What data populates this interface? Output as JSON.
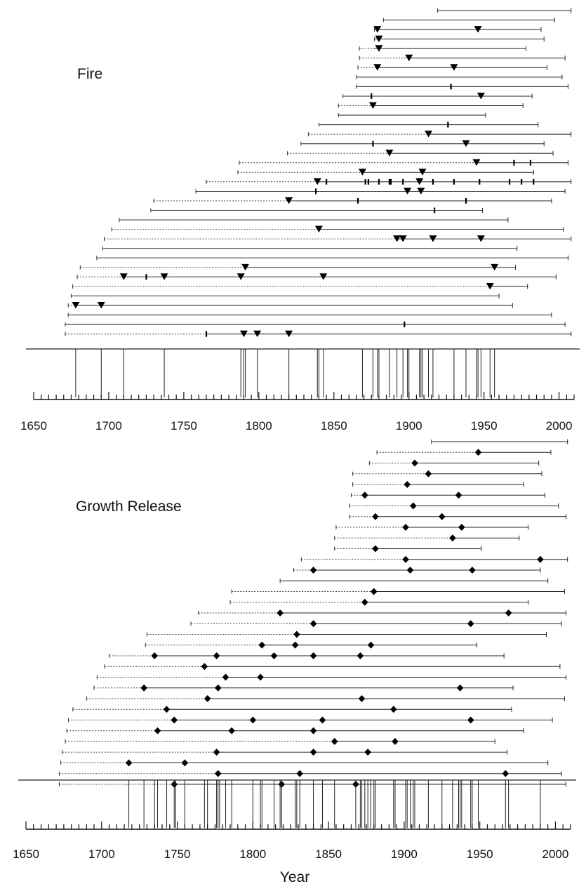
{
  "chart_data": [
    {
      "type": "event-timeline",
      "title": "Fire",
      "xlabel": "",
      "xlim": [
        1650,
        2010
      ],
      "xticks": [
        "1650",
        "1700",
        "1750",
        "1800",
        "1850",
        "1900",
        "1950",
        "2000"
      ],
      "samples": [
        {
          "pith": 1919,
          "inner": 1919,
          "outer": 2008,
          "events": [],
          "minor": []
        },
        {
          "pith": 1883,
          "inner": 1883,
          "outer": 1997,
          "events": [],
          "minor": []
        },
        {
          "pith": 1877,
          "inner": 1877,
          "outer": 1988,
          "events": [
            1879,
            1946
          ],
          "minor": []
        },
        {
          "pith": 1877,
          "inner": 1877,
          "outer": 1990,
          "events": [
            1880
          ],
          "minor": []
        },
        {
          "pith": 1867,
          "inner": 1877,
          "outer": 1978,
          "events": [
            1880
          ],
          "minor": []
        },
        {
          "pith": 1867,
          "inner": 1900,
          "outer": 2004,
          "events": [
            1900
          ],
          "minor": []
        },
        {
          "pith": 1866,
          "inner": 1879,
          "outer": 1992,
          "events": [
            1879,
            1930
          ],
          "minor": []
        },
        {
          "pith": 1865,
          "inner": 1865,
          "outer": 2002,
          "events": [],
          "minor": []
        },
        {
          "pith": 1865,
          "inner": 1865,
          "outer": 2006,
          "events": [],
          "minor": [
            1928
          ]
        },
        {
          "pith": 1856,
          "inner": 1856,
          "outer": 1982,
          "events": [
            1948
          ],
          "minor": [
            1875
          ]
        },
        {
          "pith": 1853,
          "inner": 1876,
          "outer": 1976,
          "events": [
            1876
          ],
          "minor": []
        },
        {
          "pith": 1853,
          "inner": 1853,
          "outer": 1951,
          "events": [],
          "minor": []
        },
        {
          "pith": 1840,
          "inner": 1840,
          "outer": 1986,
          "events": [],
          "minor": [
            1926
          ]
        },
        {
          "pith": 1833,
          "inner": 1913,
          "outer": 2008,
          "events": [
            1913
          ],
          "minor": []
        },
        {
          "pith": 1828,
          "inner": 1828,
          "outer": 1990,
          "events": [
            1938
          ],
          "minor": [
            1876
          ]
        },
        {
          "pith": 1819,
          "inner": 1887,
          "outer": 1996,
          "events": [
            1887
          ],
          "minor": []
        },
        {
          "pith": 1787,
          "inner": 1945,
          "outer": 2006,
          "events": [
            1945
          ],
          "minor": [
            1970,
            1981
          ]
        },
        {
          "pith": 1786,
          "inner": 1869,
          "outer": 1983,
          "events": [
            1869,
            1909
          ],
          "minor": []
        },
        {
          "pith": 1765,
          "inner": 1839,
          "outer": 2008,
          "events": [
            1839,
            1907
          ],
          "minor": [
            1845,
            1871,
            1873,
            1880,
            1887,
            1888,
            1896,
            1916,
            1930,
            1947,
            1967,
            1975,
            1983
          ]
        },
        {
          "pith": 1758,
          "inner": 1758,
          "outer": 2004,
          "events": [
            1899,
            1908
          ],
          "minor": [
            1838
          ]
        },
        {
          "pith": 1730,
          "inner": 1820,
          "outer": 1995,
          "events": [
            1820
          ],
          "minor": [
            1866,
            1938
          ]
        },
        {
          "pith": 1728,
          "inner": 1728,
          "outer": 1949,
          "events": [],
          "minor": [
            1917
          ]
        },
        {
          "pith": 1707,
          "inner": 1707,
          "outer": 1966,
          "events": [],
          "minor": []
        },
        {
          "pith": 1702,
          "inner": 1840,
          "outer": 2003,
          "events": [
            1840
          ],
          "minor": []
        },
        {
          "pith": 1697,
          "inner": 1892,
          "outer": 2008,
          "events": [
            1892,
            1896,
            1916,
            1948
          ],
          "minor": []
        },
        {
          "pith": 1696,
          "inner": 1696,
          "outer": 1972,
          "events": [],
          "minor": []
        },
        {
          "pith": 1692,
          "inner": 1692,
          "outer": 2006,
          "events": [],
          "minor": []
        },
        {
          "pith": 1681,
          "inner": 1791,
          "outer": 1971,
          "events": [
            1791,
            1957
          ],
          "minor": []
        },
        {
          "pith": 1679,
          "inner": 1710,
          "outer": 1998,
          "events": [
            1710,
            1737,
            1788,
            1843
          ],
          "minor": [
            1725
          ]
        },
        {
          "pith": 1676,
          "inner": 1954,
          "outer": 1979,
          "events": [
            1954
          ],
          "minor": []
        },
        {
          "pith": 1675,
          "inner": 1675,
          "outer": 1960,
          "events": [],
          "minor": []
        },
        {
          "pith": 1673,
          "inner": 1678,
          "outer": 1969,
          "events": [
            1678,
            1695
          ],
          "minor": []
        },
        {
          "pith": 1673,
          "inner": 1673,
          "outer": 1995,
          "events": [],
          "minor": []
        },
        {
          "pith": 1671,
          "inner": 1671,
          "outer": 2004,
          "events": [],
          "minor": [
            1897
          ]
        },
        {
          "pith": 1671,
          "inner": 1765,
          "outer": 2008,
          "events": [
            1790,
            1799,
            1820
          ],
          "minor": [
            1765
          ]
        }
      ],
      "composite": [
        1678,
        1695,
        1710,
        1737,
        1788,
        1790,
        1791,
        1799,
        1820,
        1839,
        1840,
        1843,
        1869,
        1876,
        1879,
        1880,
        1887,
        1892,
        1896,
        1899,
        1900,
        1907,
        1908,
        1909,
        1913,
        1916,
        1930,
        1938,
        1945,
        1946,
        1948,
        1954,
        1957
      ]
    },
    {
      "type": "event-timeline",
      "title": "Growth Release",
      "xlabel": "Year",
      "xlim": [
        1650,
        2010
      ],
      "xticks": [
        "1650",
        "1700",
        "1750",
        "1800",
        "1850",
        "1900",
        "1950",
        "2000"
      ],
      "samples": [
        {
          "pith": 1918,
          "inner": 1918,
          "outer": 2008,
          "events": []
        },
        {
          "pith": 1882,
          "inner": 1949,
          "outer": 1997,
          "events": [
            1949
          ]
        },
        {
          "pith": 1877,
          "inner": 1907,
          "outer": 1989,
          "events": [
            1907
          ]
        },
        {
          "pith": 1866,
          "inner": 1916,
          "outer": 1991,
          "events": [
            1916
          ]
        },
        {
          "pith": 1866,
          "inner": 1902,
          "outer": 1979,
          "events": [
            1902
          ]
        },
        {
          "pith": 1865,
          "inner": 1874,
          "outer": 1993,
          "events": [
            1874,
            1936
          ]
        },
        {
          "pith": 1864,
          "inner": 1906,
          "outer": 2002,
          "events": [
            1906
          ]
        },
        {
          "pith": 1864,
          "inner": 1881,
          "outer": 2007,
          "events": [
            1881,
            1925
          ]
        },
        {
          "pith": 1855,
          "inner": 1901,
          "outer": 1982,
          "events": [
            1901,
            1938
          ]
        },
        {
          "pith": 1854,
          "inner": 1932,
          "outer": 1976,
          "events": [
            1932
          ]
        },
        {
          "pith": 1854,
          "inner": 1881,
          "outer": 1951,
          "events": [
            1881
          ]
        },
        {
          "pith": 1832,
          "inner": 1901,
          "outer": 2008,
          "events": [
            1901,
            1990
          ]
        },
        {
          "pith": 1827,
          "inner": 1840,
          "outer": 1990,
          "events": [
            1840,
            1904,
            1945
          ]
        },
        {
          "pith": 1818,
          "inner": 1818,
          "outer": 1995,
          "events": []
        },
        {
          "pith": 1786,
          "inner": 1880,
          "outer": 2006,
          "events": [
            1880
          ]
        },
        {
          "pith": 1785,
          "inner": 1874,
          "outer": 1982,
          "events": [
            1874
          ]
        },
        {
          "pith": 1764,
          "inner": 1818,
          "outer": 2007,
          "events": [
            1818,
            1969
          ]
        },
        {
          "pith": 1759,
          "inner": 1840,
          "outer": 2004,
          "events": [
            1840,
            1944
          ]
        },
        {
          "pith": 1730,
          "inner": 1829,
          "outer": 1994,
          "events": [
            1829
          ]
        },
        {
          "pith": 1729,
          "inner": 1806,
          "outer": 1948,
          "events": [
            1806,
            1828,
            1878
          ]
        },
        {
          "pith": 1705,
          "inner": 1735,
          "outer": 1966,
          "events": [
            1735,
            1776,
            1814,
            1840,
            1871
          ]
        },
        {
          "pith": 1702,
          "inner": 1768,
          "outer": 2003,
          "events": [
            1768
          ]
        },
        {
          "pith": 1697,
          "inner": 1782,
          "outer": 2007,
          "events": [
            1782,
            1805
          ]
        },
        {
          "pith": 1695,
          "inner": 1728,
          "outer": 1972,
          "events": [
            1728,
            1777,
            1937
          ]
        },
        {
          "pith": 1690,
          "inner": 1770,
          "outer": 2006,
          "events": [
            1770,
            1872
          ]
        },
        {
          "pith": 1681,
          "inner": 1743,
          "outer": 1971,
          "events": [
            1743,
            1893
          ]
        },
        {
          "pith": 1678,
          "inner": 1748,
          "outer": 1998,
          "events": [
            1748,
            1800,
            1846,
            1944
          ]
        },
        {
          "pith": 1677,
          "inner": 1737,
          "outer": 1979,
          "events": [
            1737,
            1786,
            1840
          ]
        },
        {
          "pith": 1676,
          "inner": 1854,
          "outer": 1960,
          "events": [
            1854,
            1894
          ]
        },
        {
          "pith": 1674,
          "inner": 1776,
          "outer": 1968,
          "events": [
            1776,
            1840,
            1876
          ]
        },
        {
          "pith": 1673,
          "inner": 1718,
          "outer": 1995,
          "events": [
            1718,
            1755
          ]
        },
        {
          "pith": 1672,
          "inner": 1777,
          "outer": 2004,
          "events": [
            1777,
            1831,
            1967
          ]
        },
        {
          "pith": 1672,
          "inner": 1748,
          "outer": 2007,
          "events": [
            1748,
            1819,
            1868
          ]
        }
      ],
      "composite": [
        1718,
        1728,
        1735,
        1737,
        1743,
        1748,
        1749,
        1755,
        1768,
        1770,
        1776,
        1777,
        1778,
        1782,
        1786,
        1800,
        1805,
        1806,
        1814,
        1818,
        1819,
        1828,
        1829,
        1831,
        1840,
        1846,
        1854,
        1868,
        1871,
        1872,
        1874,
        1876,
        1878,
        1880,
        1881,
        1893,
        1894,
        1901,
        1902,
        1904,
        1906,
        1907,
        1916,
        1925,
        1932,
        1936,
        1937,
        1938,
        1944,
        1945,
        1949,
        1967,
        1969,
        1990
      ]
    }
  ]
}
